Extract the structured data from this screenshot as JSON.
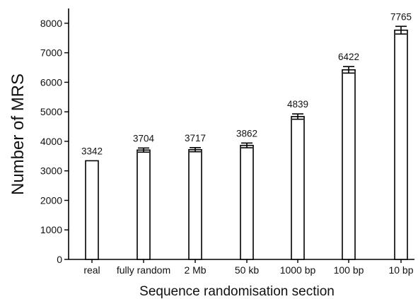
{
  "chart_data": {
    "type": "bar",
    "categories": [
      "real",
      "fully random",
      "2 Mb",
      "50 kb",
      "1000 bp",
      "100 bp",
      "10 bp"
    ],
    "values": [
      3342,
      3704,
      3717,
      3862,
      4839,
      6422,
      7765
    ],
    "value_labels": [
      "3342",
      "3704",
      "3717",
      "3862",
      "4839",
      "6422",
      "7765"
    ],
    "error": [
      0,
      70,
      70,
      80,
      90,
      110,
      130
    ],
    "xlabel": "Sequence randomisation section",
    "ylabel": "Number of MRS",
    "ylim": [
      0,
      8500
    ],
    "yticks": [
      0,
      1000,
      2000,
      3000,
      4000,
      5000,
      6000,
      7000,
      8000
    ],
    "ytick_labels": [
      "0",
      "1000",
      "2000",
      "3000",
      "4000",
      "5000",
      "6000",
      "7000",
      "8000"
    ],
    "grid": false,
    "bar_fill": "#ffffff",
    "bar_stroke": "#000000"
  }
}
